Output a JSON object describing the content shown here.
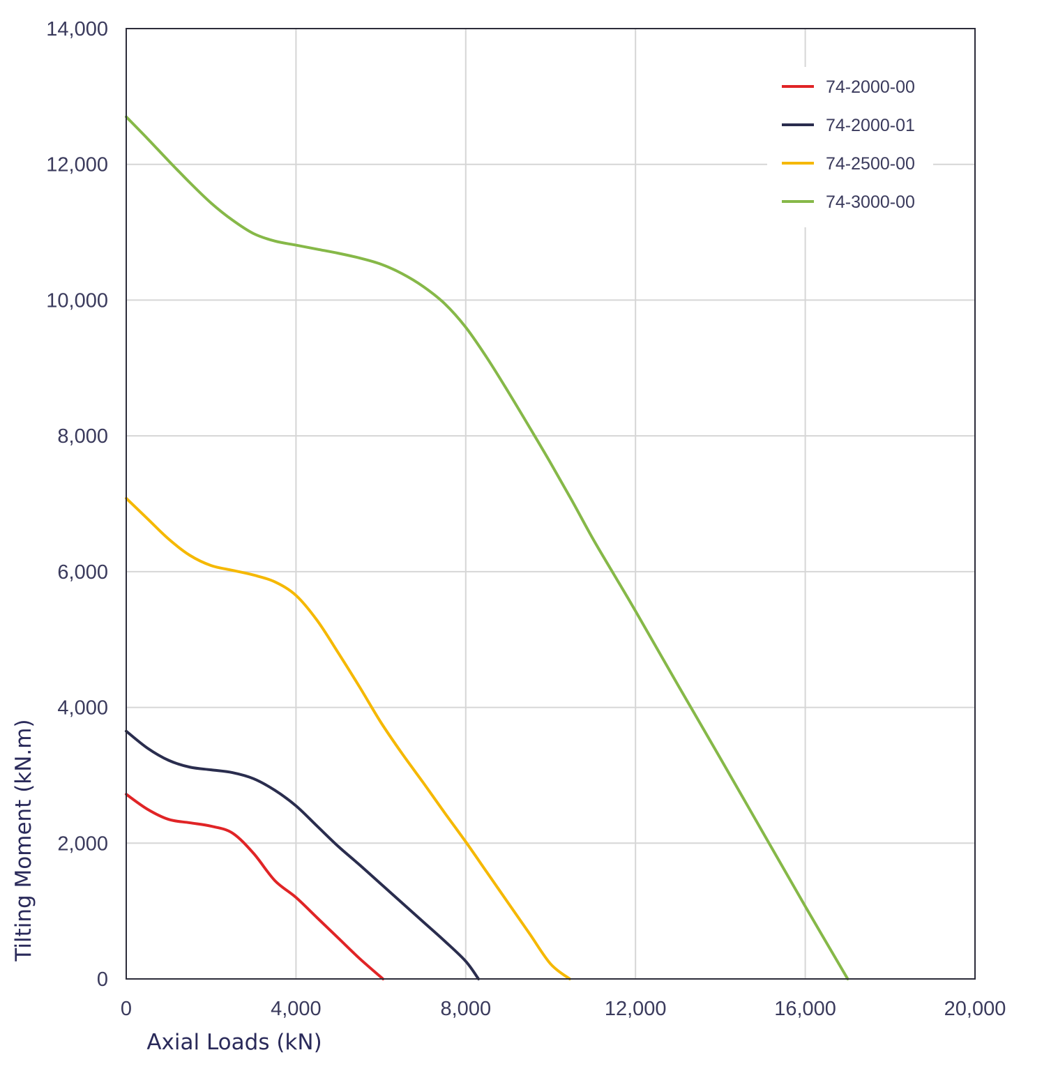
{
  "chart_data": {
    "type": "line",
    "xlabel": "Axial Loads (kN)",
    "ylabel": "Tilting Moment (kN.m)",
    "xlim": [
      0,
      20000
    ],
    "ylim": [
      0,
      14000
    ],
    "xticks": [
      0,
      4000,
      8000,
      12000,
      16000,
      20000
    ],
    "yticks": [
      0,
      2000,
      4000,
      6000,
      8000,
      10000,
      12000,
      14000
    ],
    "xtick_labels": [
      "0",
      "4,000",
      "8,000",
      "12,000",
      "16,000",
      "20,000"
    ],
    "ytick_labels": [
      "0",
      "2,000",
      "4,000",
      "6,000",
      "8,000",
      "10,000",
      "12,000",
      "14,000"
    ],
    "grid": true,
    "legend_position": "top-right",
    "series": [
      {
        "name": "74-2000-00",
        "color": "#e02426",
        "x": [
          0,
          500,
          1000,
          1500,
          2000,
          2500,
          3000,
          3500,
          4000,
          4500,
          5000,
          5500,
          6050
        ],
        "y": [
          2720,
          2500,
          2350,
          2300,
          2250,
          2150,
          1850,
          1450,
          1200,
          900,
          600,
          300,
          0
        ]
      },
      {
        "name": "74-2000-01",
        "color": "#2a2d4e",
        "x": [
          0,
          500,
          1000,
          1500,
          2000,
          2500,
          3000,
          3500,
          4000,
          4500,
          5000,
          5500,
          6000,
          6500,
          7000,
          7500,
          8000,
          8300
        ],
        "y": [
          3650,
          3400,
          3220,
          3120,
          3080,
          3040,
          2950,
          2780,
          2550,
          2250,
          1950,
          1680,
          1400,
          1120,
          840,
          560,
          260,
          0
        ]
      },
      {
        "name": "74-2500-00",
        "color": "#f5b800",
        "x": [
          0,
          500,
          1000,
          1500,
          2000,
          2500,
          3000,
          3500,
          4000,
          4500,
          5000,
          5500,
          6000,
          6500,
          7000,
          7500,
          8000,
          8500,
          9000,
          9500,
          10000,
          10450
        ],
        "y": [
          7080,
          6780,
          6480,
          6240,
          6090,
          6020,
          5950,
          5850,
          5650,
          5280,
          4800,
          4300,
          3780,
          3320,
          2890,
          2450,
          2020,
          1570,
          1120,
          670,
          220,
          0
        ]
      },
      {
        "name": "74-3000-00",
        "color": "#86b848",
        "x": [
          0,
          500,
          1000,
          1500,
          2000,
          2500,
          3000,
          3500,
          4000,
          4500,
          5000,
          5500,
          6000,
          6500,
          7000,
          7500,
          8000,
          8500,
          9000,
          9500,
          10000,
          10500,
          11000,
          11500,
          12000,
          13000,
          14000,
          15000,
          16000,
          17000,
          18000,
          18300
        ],
        "y": [
          12700,
          12380,
          12050,
          11730,
          11430,
          11180,
          10980,
          10870,
          10810,
          10750,
          10690,
          10620,
          10530,
          10390,
          10200,
          9950,
          9600,
          9150,
          8650,
          8130,
          7600,
          7050,
          6480,
          5950,
          5420,
          4330,
          3250,
          2160,
          1070,
          0,
          0,
          0
        ]
      }
    ]
  }
}
